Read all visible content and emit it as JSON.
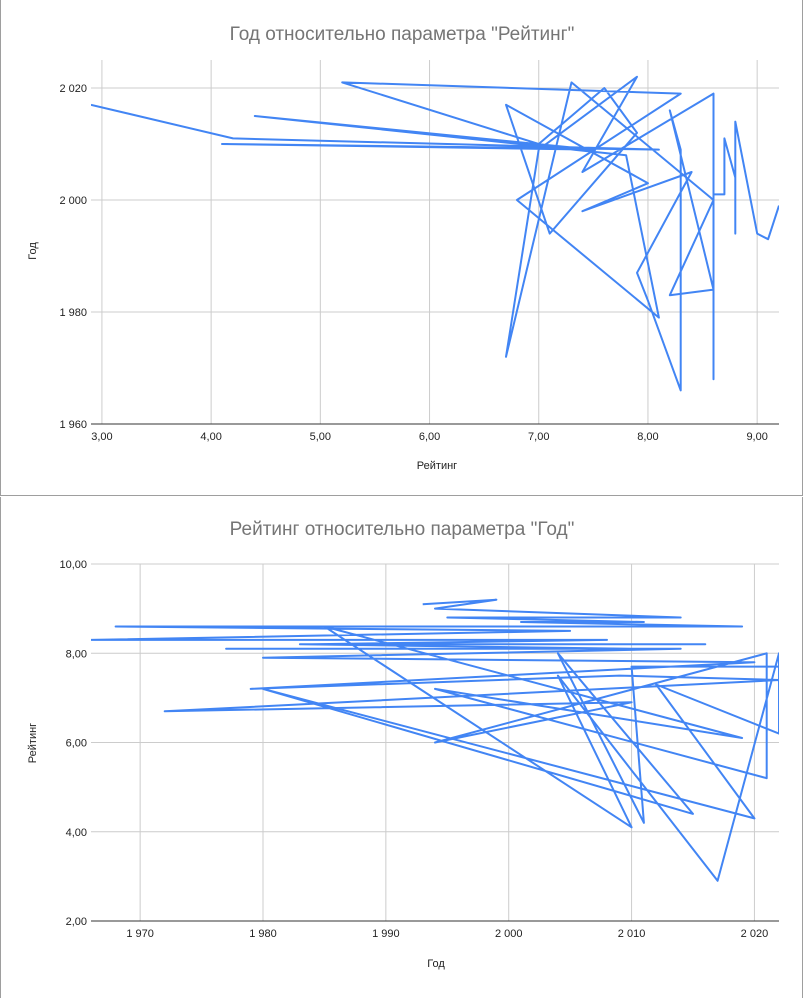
{
  "chart_data": [
    {
      "type": "line",
      "title": "Год относительно параметра \"Рейтинг\"",
      "xlabel": "Рейтинг",
      "ylabel": "Год",
      "xlim": [
        2.9,
        9.2
      ],
      "ylim": [
        1960,
        2025
      ],
      "x_ticks": [
        3,
        4,
        5,
        6,
        7,
        8,
        9
      ],
      "x_tick_labels": [
        "3,00",
        "4,00",
        "5,00",
        "6,00",
        "7,00",
        "8,00",
        "9,00"
      ],
      "y_ticks": [
        1960,
        1980,
        2000,
        2020
      ],
      "y_tick_labels": [
        "1 960",
        "1 980",
        "2 000",
        "2 020"
      ],
      "grid": true,
      "series": [
        {
          "values": [
            [
              2.9,
              2017
            ],
            [
              4.2,
              2011
            ],
            [
              8.1,
              2009
            ],
            [
              4.1,
              2010
            ],
            [
              7.5,
              2009
            ],
            [
              4.4,
              2015
            ],
            [
              7.8,
              2008
            ],
            [
              8.1,
              1979
            ],
            [
              6.8,
              2000
            ],
            [
              8.3,
              2019
            ],
            [
              5.2,
              2021
            ],
            [
              7.0,
              2010
            ],
            [
              7.6,
              2020
            ],
            [
              7.9,
              2012
            ],
            [
              7.1,
              1994
            ],
            [
              6.7,
              2017
            ],
            [
              8.0,
              2003
            ],
            [
              7.4,
              1998
            ],
            [
              8.4,
              2005
            ],
            [
              7.9,
              1987
            ],
            [
              8.0,
              1982
            ],
            [
              8.3,
              1966
            ],
            [
              8.3,
              2009
            ],
            [
              8.2,
              2016
            ],
            [
              8.6,
              1984
            ],
            [
              8.2,
              1983
            ],
            [
              8.6,
              2000
            ],
            [
              7.3,
              2021
            ],
            [
              6.7,
              1972
            ],
            [
              7.0,
              2009
            ],
            [
              7.9,
              2022
            ],
            [
              7.4,
              2005
            ],
            [
              8.6,
              2019
            ],
            [
              8.6,
              1968
            ],
            [
              8.6,
              2001
            ],
            [
              8.7,
              2001
            ],
            [
              8.7,
              2011
            ],
            [
              8.8,
              2004
            ],
            [
              8.8,
              1994
            ],
            [
              8.8,
              2014
            ],
            [
              9.0,
              1994
            ],
            [
              9.1,
              1993
            ],
            [
              9.2,
              1999
            ]
          ]
        }
      ]
    },
    {
      "type": "line",
      "title": "Рейтинг относительно параметра \"Год\"",
      "xlabel": "Год",
      "ylabel": "Рейтинг",
      "xlim": [
        1966,
        2022
      ],
      "ylim": [
        2,
        10
      ],
      "x_ticks": [
        1970,
        1980,
        1990,
        2000,
        2010,
        2020
      ],
      "x_tick_labels": [
        "1 970",
        "1 980",
        "1 990",
        "2 000",
        "2 010",
        "2 020"
      ],
      "y_ticks": [
        2,
        4,
        6,
        8,
        10
      ],
      "y_tick_labels": [
        "2,00",
        "4,00",
        "6,00",
        "8,00",
        "10,00"
      ],
      "grid": true,
      "series": [
        {
          "values": [
            [
              1993,
              9.1
            ],
            [
              1999,
              9.2
            ],
            [
              1994,
              9.0
            ],
            [
              2014,
              8.8
            ],
            [
              1995,
              8.8
            ],
            [
              2011,
              8.7
            ],
            [
              2001,
              8.7
            ],
            [
              2019,
              8.6
            ],
            [
              1968,
              8.6
            ],
            [
              2005,
              8.5
            ],
            [
              1966,
              8.3
            ],
            [
              2008,
              8.3
            ],
            [
              1984,
              8.2
            ],
            [
              2016,
              8.2
            ],
            [
              1983,
              8.2
            ],
            [
              2010,
              8.1
            ],
            [
              1977,
              8.1
            ],
            [
              2014,
              8.1
            ],
            [
              1980,
              7.9
            ],
            [
              2020,
              7.8
            ],
            [
              1979,
              7.2
            ],
            [
              2009,
              7.5
            ],
            [
              2022,
              7.4
            ],
            [
              1972,
              6.7
            ],
            [
              2010,
              6.9
            ],
            [
              1994,
              6.0
            ],
            [
              2021,
              8.0
            ],
            [
              2021,
              5.2
            ],
            [
              1994,
              7.2
            ],
            [
              2019,
              6.1
            ],
            [
              1985,
              8.6
            ],
            [
              2010,
              4.1
            ],
            [
              2004,
              7.5
            ],
            [
              2017,
              2.9
            ],
            [
              2022,
              8.0
            ],
            [
              2022,
              6.2
            ],
            [
              2012,
              7.3
            ],
            [
              2020,
              4.3
            ],
            [
              1980,
              7.2
            ],
            [
              2015,
              4.4
            ],
            [
              2004,
              8.0
            ],
            [
              2011,
              4.2
            ],
            [
              2010,
              7.7
            ],
            [
              2022,
              7.7
            ]
          ]
        }
      ]
    }
  ]
}
